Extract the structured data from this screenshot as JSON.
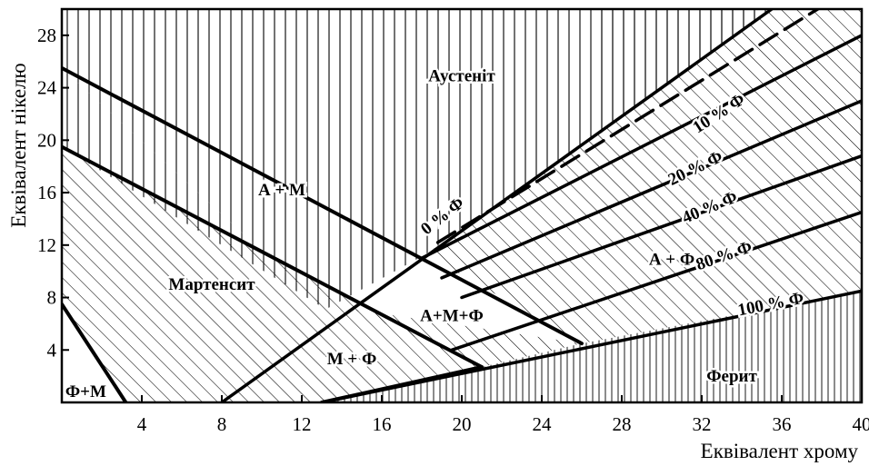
{
  "chart_data": {
    "type": "diagram",
    "xlabel": "Еквівалент хрому",
    "ylabel": "Еквівалент нікелю",
    "xlim": [
      0,
      40
    ],
    "ylim": [
      0,
      30
    ],
    "x_ticks": [
      "4",
      "8",
      "12",
      "16",
      "20",
      "24",
      "28",
      "32",
      "36",
      "40"
    ],
    "y_ticks": [
      "4",
      "8",
      "12",
      "16",
      "20",
      "24",
      "28"
    ],
    "regions": [
      {
        "key": "austenite",
        "label": "Аустеніт",
        "at": [
          20,
          24.5
        ]
      },
      {
        "key": "a_m",
        "label": "А + М",
        "at": [
          11,
          15.8
        ]
      },
      {
        "key": "martensite",
        "label": "Мартенсит",
        "at": [
          7.5,
          8.6
        ]
      },
      {
        "key": "a_m_f",
        "label": "А+М+Ф",
        "at": [
          19.5,
          6.2
        ]
      },
      {
        "key": "m_f",
        "label": "М + Ф",
        "at": [
          14.5,
          2.9
        ]
      },
      {
        "key": "a_f",
        "label": "А + Ф",
        "at": [
          30.5,
          10.5
        ]
      },
      {
        "key": "ferrite",
        "label": "Ферит",
        "at": [
          33.5,
          1.6
        ]
      },
      {
        "key": "f_m",
        "label": "Ф+М",
        "at": [
          1.2,
          0.4
        ]
      }
    ],
    "ferrite_lines": [
      {
        "label": "0 % Ф",
        "points": [
          [
            8,
            0
          ],
          [
            35.5,
            30
          ]
        ],
        "label_at": [
          19.2,
          13.9
        ],
        "angle": -38
      },
      {
        "label": "10 % Ф",
        "points": [
          [
            18,
            11
          ],
          [
            40,
            28
          ]
        ],
        "label_at": [
          33,
          21.7
        ],
        "angle": -33
      },
      {
        "label": "20 % Ф",
        "points": [
          [
            19,
            9.5
          ],
          [
            40,
            23
          ]
        ],
        "label_at": [
          31.8,
          17.5
        ],
        "angle": -26
      },
      {
        "label": "40 % Ф",
        "points": [
          [
            20,
            8
          ],
          [
            40,
            18.8
          ]
        ],
        "label_at": [
          32.5,
          14.5
        ],
        "angle": -23
      },
      {
        "label": "80 % Ф",
        "points": [
          [
            19.5,
            4
          ],
          [
            40,
            14.5
          ]
        ],
        "label_at": [
          33.2,
          10.8
        ],
        "angle": -19
      },
      {
        "label": "100 % Ф",
        "points": [
          [
            13,
            0
          ],
          [
            40,
            8.5
          ]
        ],
        "label_at": [
          35.5,
          7.1
        ],
        "angle": -11
      }
    ],
    "boundaries": [
      {
        "name": "austenite-martensite",
        "points": [
          [
            0,
            25.5
          ],
          [
            26,
            4.5
          ]
        ]
      },
      {
        "name": "martensite-ferrite-upper",
        "points": [
          [
            0,
            19.5
          ],
          [
            21,
            2.7
          ]
        ]
      },
      {
        "name": "ferrite-martensite-corner",
        "points": [
          [
            0,
            7.5
          ],
          [
            3.2,
            0
          ]
        ]
      }
    ]
  }
}
